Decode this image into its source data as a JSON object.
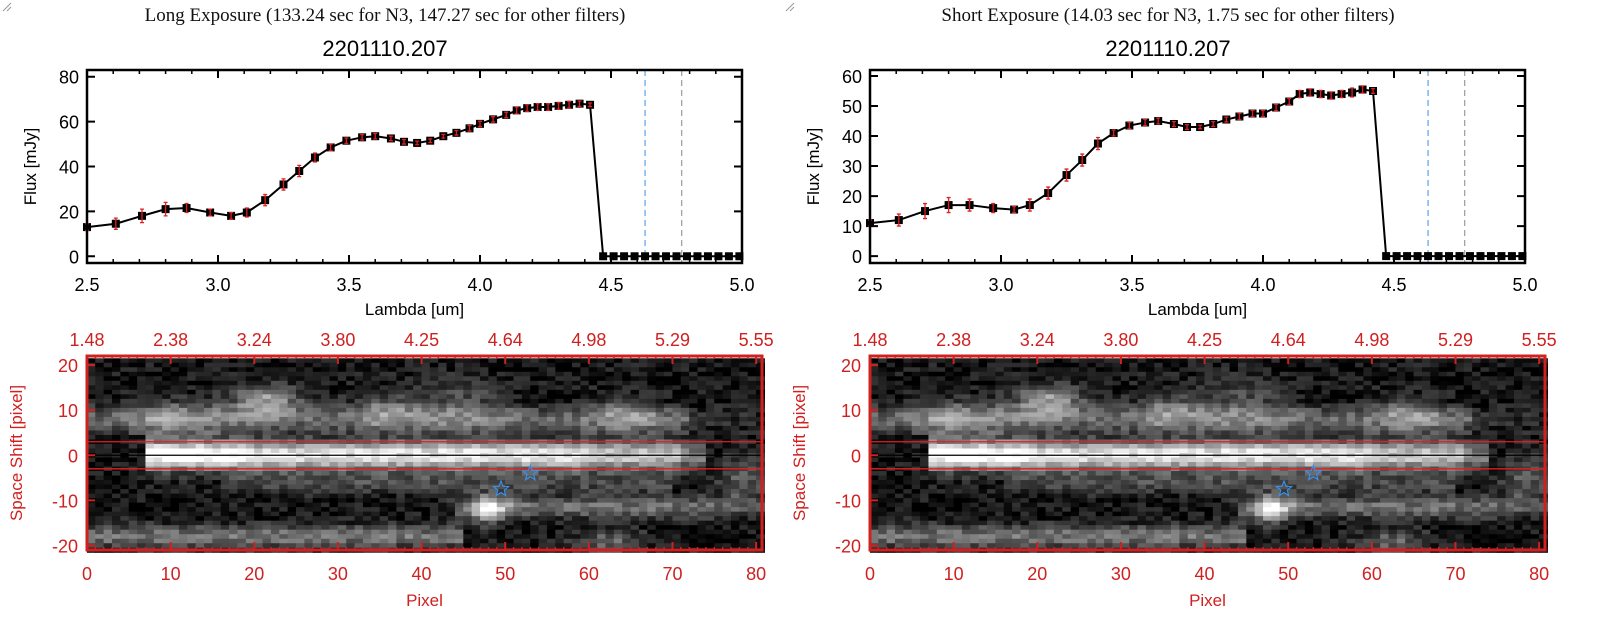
{
  "panels": [
    {
      "title": "Long Exposure (133.24 sec for N3, 147.27 sec for other filters)",
      "object_id": "2201110.207"
    },
    {
      "title": "Short Exposure (14.03 sec for N3, 1.75 sec for other filters)",
      "object_id": "2201110.207"
    }
  ],
  "chart_data": [
    {
      "type": "line",
      "title": "2201110.207",
      "xlabel": "Lambda [um]",
      "ylabel": "Flux [mJy]",
      "xlim": [
        2.5,
        5.0
      ],
      "ylim": [
        -3,
        83
      ],
      "xticks": [
        "2.5",
        "3.0",
        "3.5",
        "4.0",
        "4.5",
        "5.0"
      ],
      "yticks": [
        "0",
        "20",
        "40",
        "60",
        "80"
      ],
      "x": [
        2.5,
        2.61,
        2.71,
        2.8,
        2.88,
        2.97,
        3.05,
        3.11,
        3.18,
        3.25,
        3.31,
        3.37,
        3.43,
        3.49,
        3.55,
        3.6,
        3.66,
        3.71,
        3.76,
        3.81,
        3.86,
        3.91,
        3.96,
        4.0,
        4.05,
        4.1,
        4.14,
        4.18,
        4.22,
        4.26,
        4.3,
        4.34,
        4.38,
        4.42,
        4.47,
        4.51,
        4.55,
        4.59,
        4.63,
        4.67,
        4.71,
        4.75,
        4.79,
        4.83,
        4.87,
        4.91,
        4.95,
        4.99
      ],
      "y": [
        13,
        14.5,
        18,
        21,
        21.5,
        19.5,
        18,
        19.5,
        25,
        32,
        38,
        44,
        48.5,
        51.5,
        53,
        53.5,
        52.5,
        51,
        50.5,
        51.5,
        53.5,
        55,
        57,
        59,
        61,
        63,
        65,
        66,
        66.5,
        66.5,
        67,
        67.5,
        68,
        67.5,
        0,
        0,
        0,
        0,
        0,
        0,
        0,
        0,
        0,
        0,
        0,
        0,
        0,
        0
      ],
      "yerr": [
        1.5,
        2.5,
        3,
        3,
        2,
        1.5,
        1.5,
        2,
        2.5,
        2.5,
        2.5,
        2,
        1.5,
        1.2,
        1.2,
        1.2,
        1,
        1,
        0.8,
        0.8,
        0.8,
        1,
        1.2,
        1.2,
        1.2,
        1.2,
        1.5,
        1.5,
        1.5,
        1.5,
        1.5,
        1.5,
        1.2,
        0.8,
        0,
        0,
        0,
        0,
        0,
        0,
        0,
        0,
        0,
        0,
        0,
        0,
        0,
        0
      ],
      "vlines": [
        {
          "x": 4.63,
          "color": "#3a8ee8"
        },
        {
          "x": 4.77,
          "color": "#888888"
        }
      ],
      "zero_line_color": "#e02020",
      "line_color": "#000000",
      "errorbar_color": "#e02020"
    },
    {
      "type": "line",
      "title": "2201110.207",
      "xlabel": "Lambda [um]",
      "ylabel": "Flux [mJy]",
      "xlim": [
        2.5,
        5.0
      ],
      "ylim": [
        -2.3,
        62
      ],
      "xticks": [
        "2.5",
        "3.0",
        "3.5",
        "4.0",
        "4.5",
        "5.0"
      ],
      "yticks": [
        "0",
        "10",
        "20",
        "30",
        "40",
        "50",
        "60"
      ],
      "x": [
        2.5,
        2.61,
        2.71,
        2.8,
        2.88,
        2.97,
        3.05,
        3.11,
        3.18,
        3.25,
        3.31,
        3.37,
        3.43,
        3.49,
        3.55,
        3.6,
        3.66,
        3.71,
        3.76,
        3.81,
        3.86,
        3.91,
        3.96,
        4.0,
        4.05,
        4.1,
        4.14,
        4.18,
        4.22,
        4.26,
        4.3,
        4.34,
        4.38,
        4.42,
        4.47,
        4.51,
        4.55,
        4.59,
        4.63,
        4.67,
        4.71,
        4.75,
        4.79,
        4.83,
        4.87,
        4.91,
        4.95,
        4.99
      ],
      "y": [
        11,
        12,
        15,
        17,
        17,
        16,
        15.5,
        17,
        21,
        27,
        32,
        37.5,
        41,
        43.5,
        44.5,
        45,
        44,
        43,
        43,
        44,
        45.5,
        46.5,
        47.5,
        47.5,
        49.5,
        51.5,
        54,
        54.5,
        54,
        53.5,
        54,
        54.5,
        55.5,
        55,
        0,
        0,
        0,
        0,
        0,
        0,
        0,
        0,
        0,
        0,
        0,
        0,
        0,
        0
      ],
      "yerr": [
        1,
        2,
        2.5,
        2.5,
        2,
        1.5,
        1,
        2,
        2,
        2,
        2,
        2,
        1,
        1,
        1,
        1,
        0.8,
        0.8,
        0.6,
        0.8,
        0.8,
        1,
        1,
        1,
        1,
        1,
        1.2,
        1.2,
        1.2,
        1.2,
        1.2,
        1.5,
        1.2,
        0.8,
        0,
        0,
        0,
        0,
        0,
        0,
        0,
        0,
        0,
        0,
        0,
        0,
        0,
        0
      ],
      "vlines": [
        {
          "x": 4.63,
          "color": "#3a8ee8"
        },
        {
          "x": 4.77,
          "color": "#888888"
        }
      ],
      "zero_line_color": "#e02020",
      "line_color": "#000000",
      "errorbar_color": "#e02020"
    },
    {
      "type": "heatmap",
      "colormap": "grayscale",
      "xlabel": "Pixel",
      "ylabel": "Space Shift [pixel]",
      "xlim": [
        0,
        80.7
      ],
      "ylim": [
        -21,
        22
      ],
      "xticks": [
        "0",
        "10",
        "20",
        "30",
        "40",
        "50",
        "60",
        "70",
        "80"
      ],
      "yticks": [
        "20",
        "10",
        "0",
        "-10",
        "-20"
      ],
      "top_axis_label": "Lambda [um]",
      "top_ticks": [
        "1.48",
        "2.38",
        "3.24",
        "3.80",
        "4.25",
        "4.64",
        "4.98",
        "5.29",
        "5.55"
      ],
      "aperture_lines": [
        3,
        -3
      ],
      "center_line": 0,
      "stars": [
        {
          "x": 53,
          "y": -4
        },
        {
          "x": 49.5,
          "y": -7.5
        }
      ],
      "axis_color": "#d02020",
      "star_color": "#3a8ee8"
    }
  ]
}
